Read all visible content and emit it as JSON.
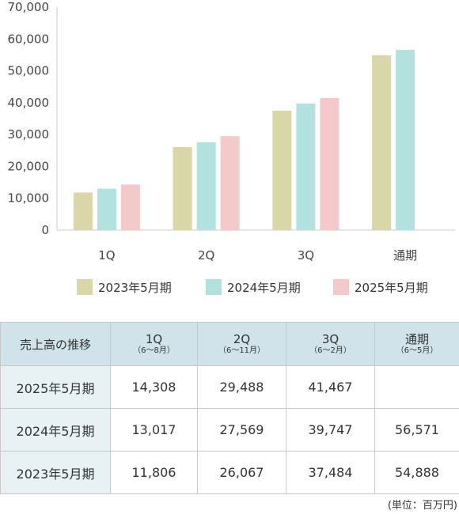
{
  "chart_data": {
    "type": "bar",
    "categories": [
      "1Q",
      "2Q",
      "3Q",
      "通期"
    ],
    "series": [
      {
        "name": "2023年5月期",
        "color": "#d9d6a8",
        "values": [
          11806,
          26067,
          37484,
          54888
        ]
      },
      {
        "name": "2024年5月期",
        "color": "#b2e2e0",
        "values": [
          13017,
          27569,
          39747,
          56571
        ]
      },
      {
        "name": "2025年5月期",
        "color": "#f4c9c9",
        "values": [
          14308,
          29488,
          41467,
          null
        ]
      }
    ],
    "ylim": [
      0,
      70000
    ],
    "yticks": [
      "0",
      "10,000",
      "20,000",
      "30,000",
      "40,000",
      "50,000",
      "60,000",
      "70,000"
    ],
    "xtick_labels": [
      "1Q",
      "2Q",
      "3Q",
      "通期"
    ],
    "grid": false,
    "legend_position": "bottom"
  },
  "table": {
    "corner": "売上高の推移",
    "columns": [
      {
        "main": "1Q",
        "sub": "（6～8月）"
      },
      {
        "main": "2Q",
        "sub": "（6～11月）"
      },
      {
        "main": "3Q",
        "sub": "（6～2月）"
      },
      {
        "main": "通期",
        "sub": "（6～5月）"
      }
    ],
    "rows": [
      {
        "label": "2025年5月期",
        "values": [
          "14,308",
          "29,488",
          "41,467",
          ""
        ]
      },
      {
        "label": "2024年5月期",
        "values": [
          "13,017",
          "27,569",
          "39,747",
          "56,571"
        ]
      },
      {
        "label": "2023年5月期",
        "values": [
          "11,806",
          "26,067",
          "37,484",
          "54,888"
        ]
      }
    ]
  },
  "unit_note": "(単位：百万円)"
}
